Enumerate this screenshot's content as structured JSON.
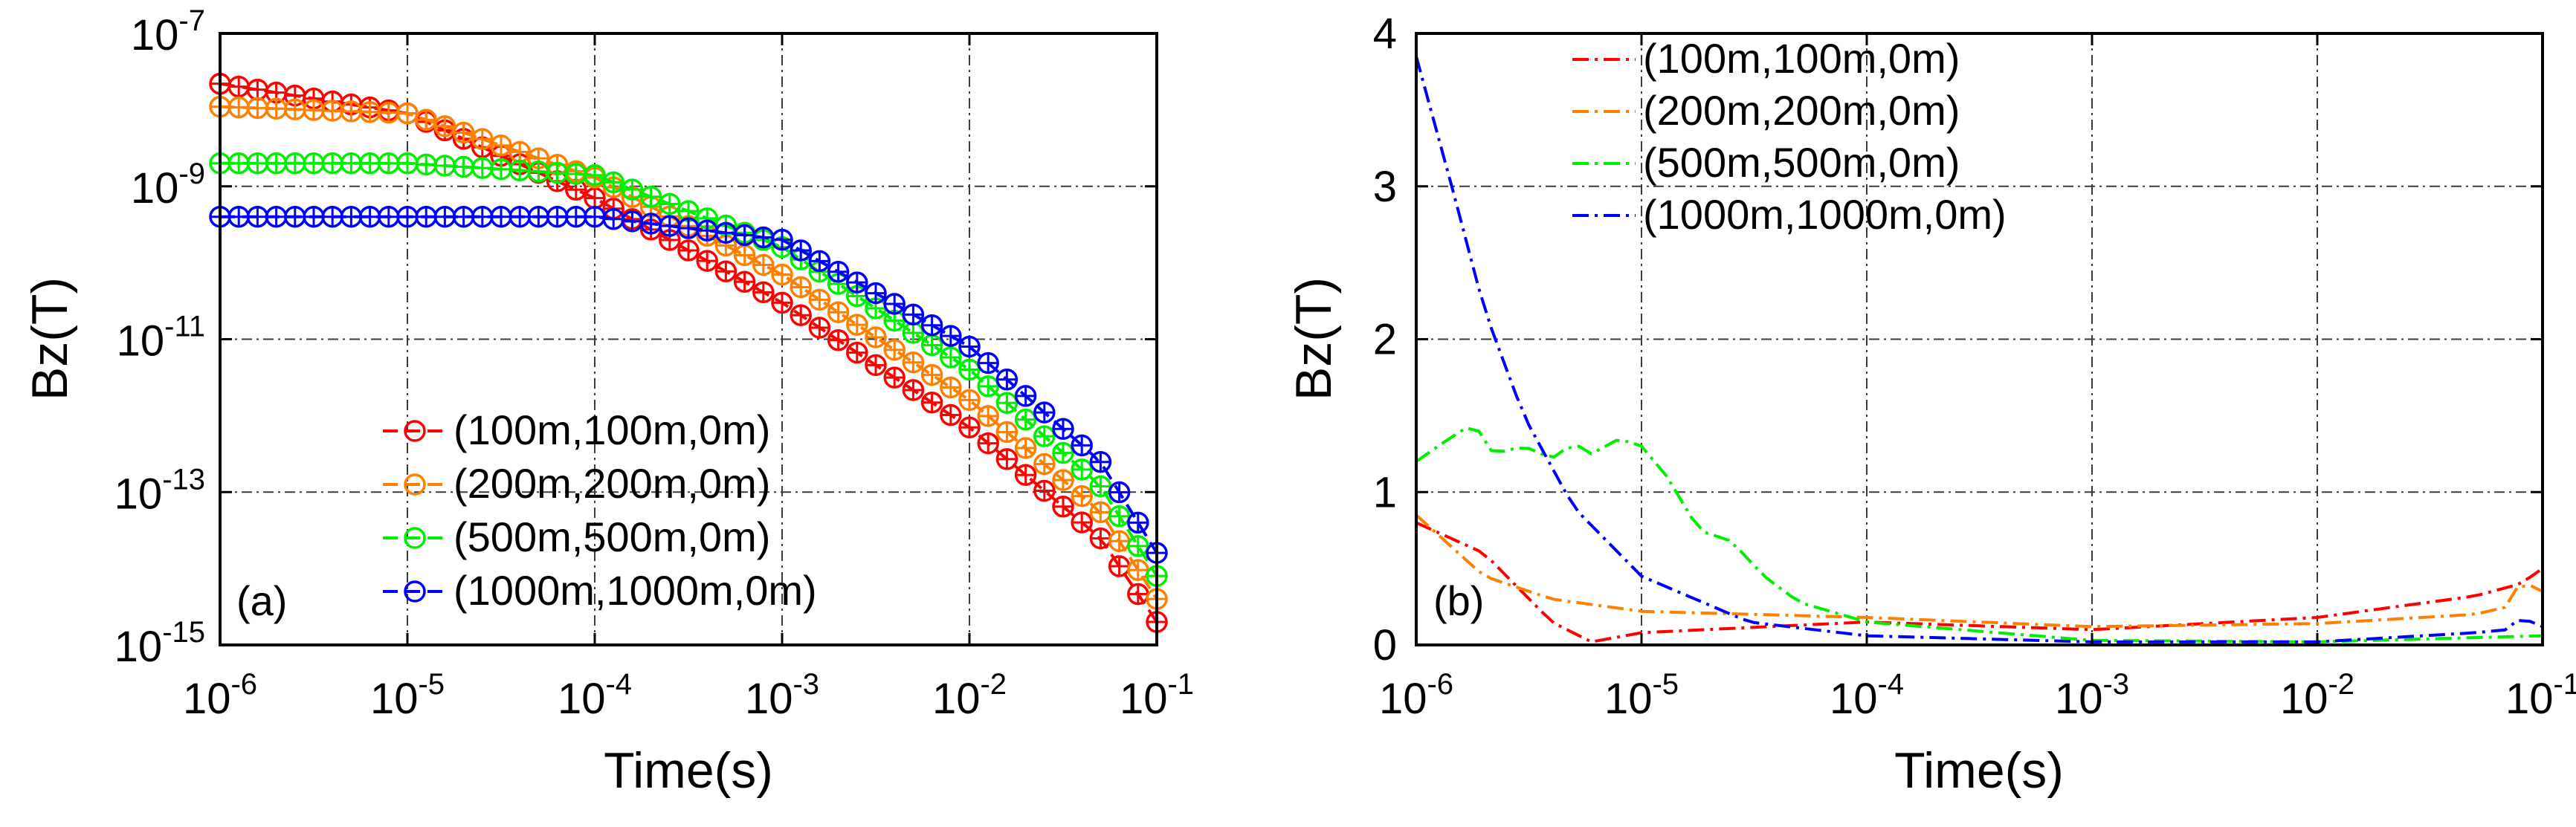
{
  "figure_title": "",
  "chart_data": [
    {
      "panel_label": "(a)",
      "type": "line",
      "title": "",
      "xlabel": "Time(s)",
      "ylabel": "Bz(T)",
      "xscale": "log",
      "yscale": "log",
      "xlim": [
        1e-06,
        0.1
      ],
      "ylim": [
        1e-15,
        1e-07
      ],
      "grid": true,
      "legend_position": "bottom-center",
      "x_ticks": [
        {
          "base": "10",
          "exp": "-6",
          "value": 1e-06
        },
        {
          "base": "10",
          "exp": "-5",
          "value": 1e-05
        },
        {
          "base": "10",
          "exp": "-4",
          "value": 0.0001
        },
        {
          "base": "10",
          "exp": "-3",
          "value": 0.001
        },
        {
          "base": "10",
          "exp": "-2",
          "value": 0.01
        },
        {
          "base": "10",
          "exp": "-1",
          "value": 0.1
        }
      ],
      "y_ticks": [
        {
          "base": "10",
          "exp": "-15",
          "value": 1e-15
        },
        {
          "base": "10",
          "exp": "-13",
          "value": 1e-13
        },
        {
          "base": "10",
          "exp": "-11",
          "value": 1e-11
        },
        {
          "base": "10",
          "exp": "-9",
          "value": 1e-09
        },
        {
          "base": "10",
          "exp": "-7",
          "value": 1e-07
        }
      ],
      "series": [
        {
          "name": "(100m,100m,0m)",
          "color": "#ff0000",
          "marker": "circle-plus",
          "line": "dash",
          "x": [
            1e-06,
            1e-05,
            0.0001,
            0.001,
            0.01,
            0.05,
            0.1
          ],
          "values": [
            2.2e-08,
            9e-09,
            7e-10,
            3e-11,
            7e-13,
            2.5e-14,
            2e-15
          ]
        },
        {
          "name": "(200m,200m,0m)",
          "color": "#ff8000",
          "marker": "circle-plus",
          "line": "dash",
          "x": [
            1e-06,
            1e-05,
            0.0001,
            0.001,
            0.01,
            0.05,
            0.1
          ],
          "values": [
            1.1e-08,
            9e-09,
            1.3e-09,
            7e-11,
            1.6e-12,
            5.5e-14,
            4e-15
          ]
        },
        {
          "name": "(500m,500m,0m)",
          "color": "#00ee00",
          "marker": "circle-plus",
          "line": "dash",
          "x": [
            1e-06,
            1e-05,
            0.0001,
            0.001,
            0.01,
            0.05,
            0.1
          ],
          "values": [
            2e-09,
            2e-09,
            1.4e-09,
            1.6e-10,
            4e-12,
            1.2e-13,
            8e-15
          ]
        },
        {
          "name": "(1000m,1000m,0m)",
          "color": "#0000ff",
          "marker": "circle-plus",
          "line": "dash",
          "x": [
            1e-06,
            1e-05,
            0.0001,
            0.001,
            0.01,
            0.05,
            0.1
          ],
          "values": [
            4e-10,
            4e-10,
            4e-10,
            2e-10,
            8e-12,
            2.5e-13,
            1.6e-14
          ]
        }
      ]
    },
    {
      "panel_label": "(b)",
      "type": "line",
      "title": "",
      "xlabel": "Time(s)",
      "ylabel": "Bz(T)",
      "xscale": "log",
      "yscale": "linear",
      "xlim": [
        1e-06,
        0.1
      ],
      "ylim": [
        0,
        4
      ],
      "grid": true,
      "legend_position": "top-left",
      "x_ticks": [
        {
          "base": "10",
          "exp": "-6",
          "value": 1e-06
        },
        {
          "base": "10",
          "exp": "-5",
          "value": 1e-05
        },
        {
          "base": "10",
          "exp": "-4",
          "value": 0.0001
        },
        {
          "base": "10",
          "exp": "-3",
          "value": 0.001
        },
        {
          "base": "10",
          "exp": "-2",
          "value": 0.01
        },
        {
          "base": "10",
          "exp": "-1",
          "value": 0.1
        }
      ],
      "y_ticks": [
        {
          "label": "0",
          "value": 0
        },
        {
          "label": "1",
          "value": 1
        },
        {
          "label": "2",
          "value": 2
        },
        {
          "label": "3",
          "value": 3
        },
        {
          "label": "4",
          "value": 4
        }
      ],
      "series": [
        {
          "name": "(100m,100m,0m)",
          "color": "#ff0000",
          "line": "dashdot",
          "x": [
            1e-06,
            2e-06,
            4e-06,
            6e-06,
            1e-05,
            0.0001,
            0.001,
            0.01,
            0.05,
            0.08,
            0.1
          ],
          "values": [
            0.8,
            0.6,
            0.15,
            0.02,
            0.08,
            0.15,
            0.1,
            0.18,
            0.32,
            0.4,
            0.5
          ]
        },
        {
          "name": "(200m,200m,0m)",
          "color": "#ff8000",
          "line": "dashdot",
          "x": [
            1e-06,
            2e-06,
            4e-06,
            1e-05,
            0.0001,
            0.001,
            0.01,
            0.05,
            0.07,
            0.08,
            0.1
          ],
          "values": [
            0.85,
            0.45,
            0.3,
            0.22,
            0.18,
            0.12,
            0.14,
            0.2,
            0.25,
            0.42,
            0.35
          ]
        },
        {
          "name": "(500m,500m,0m)",
          "color": "#00ee00",
          "line": "dashdot",
          "x": [
            1e-06,
            1.4e-06,
            1.8e-06,
            2.2e-06,
            3e-06,
            4e-06,
            5e-06,
            6e-06,
            8e-06,
            1e-05,
            1.3e-05,
            1.8e-05,
            2.5e-05,
            3.5e-05,
            5e-05,
            0.0001,
            0.001,
            0.01,
            0.1
          ],
          "values": [
            1.2,
            1.35,
            1.45,
            1.25,
            1.3,
            1.22,
            1.32,
            1.25,
            1.35,
            1.3,
            1.1,
            0.75,
            0.68,
            0.45,
            0.28,
            0.15,
            0.03,
            0.02,
            0.06
          ]
        },
        {
          "name": "(1000m,1000m,0m)",
          "color": "#0000ff",
          "line": "dashdot",
          "x": [
            1e-06,
            1.5e-06,
            2e-06,
            3e-06,
            5e-06,
            1e-05,
            3e-05,
            0.0001,
            0.001,
            0.01,
            0.05,
            0.07,
            0.08,
            0.1
          ],
          "values": [
            3.85,
            2.9,
            2.2,
            1.5,
            0.9,
            0.45,
            0.15,
            0.06,
            0.02,
            0.02,
            0.08,
            0.1,
            0.18,
            0.12
          ]
        }
      ]
    }
  ]
}
